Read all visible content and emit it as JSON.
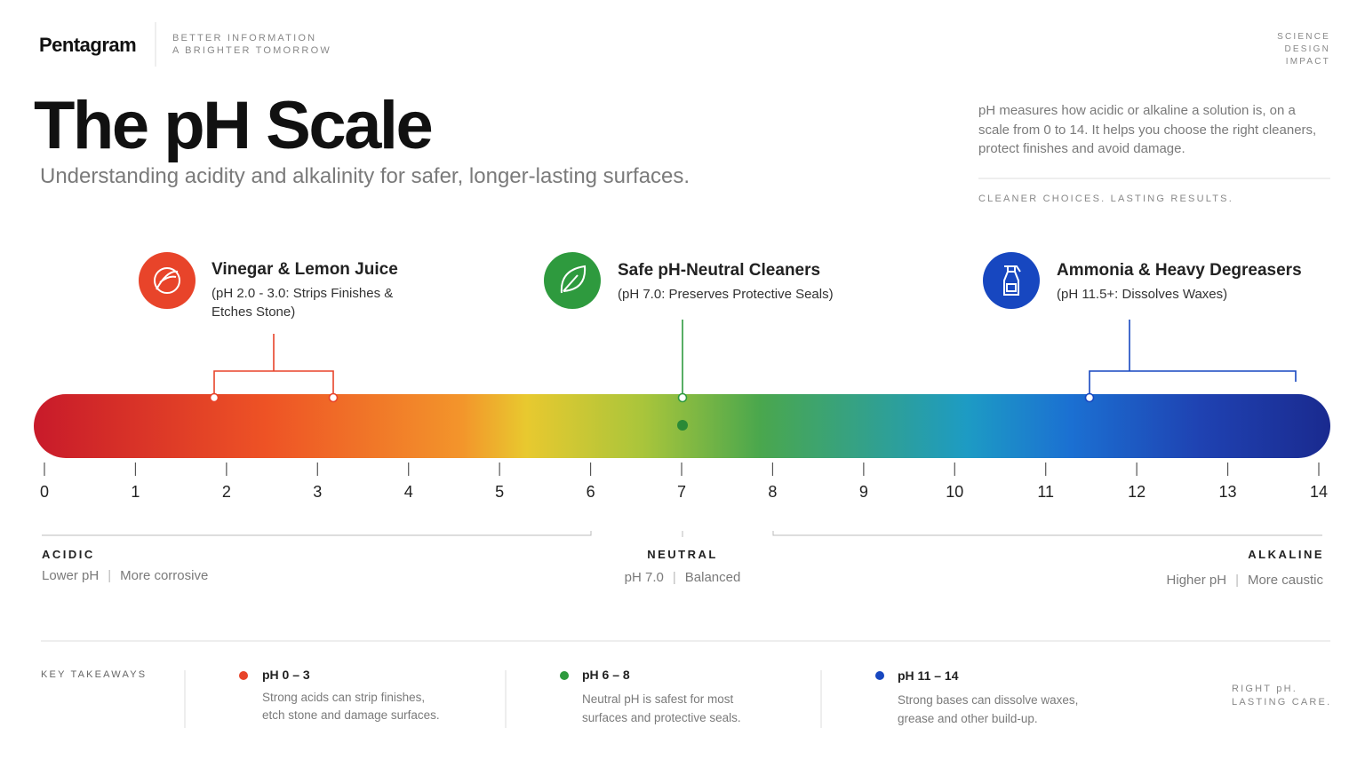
{
  "header": {
    "brand": "Pentagram",
    "tagline": [
      "BETTER INFORMATION",
      "A BRIGHTER TOMORROW"
    ],
    "corner": [
      "SCIENCE",
      "DESIGN",
      "IMPACT"
    ]
  },
  "title": "The pH Scale",
  "subtitle": "Understanding acidity and alkalinity for safer, longer-lasting surfaces.",
  "intro": {
    "text": "pH measures how acidic or alkaline a solution is, on a scale from 0 to 14. It helps you choose the right cleaners, protect finishes and avoid damage.",
    "tagline": "CLEANER CHOICES. LASTING RESULTS."
  },
  "callouts": [
    {
      "title": "Vinegar & Lemon Juice",
      "detail": "(pH 2.0 - 3.0: Strips Finishes & Etches Stone)"
    },
    {
      "title": "Safe pH-Neutral Cleaners",
      "detail": "(pH 7.0: Preserves Protective Seals)"
    },
    {
      "title": "Ammonia & Heavy Degreasers",
      "detail": "(pH 11.5+: Dissolves Waxes)"
    }
  ],
  "scale": {
    "ticks": [
      0,
      1,
      2,
      3,
      4,
      5,
      6,
      7,
      8,
      9,
      10,
      11,
      12,
      13,
      14
    ]
  },
  "zones": [
    {
      "label": "ACIDIC",
      "notes": [
        "Lower pH",
        "More corrosive"
      ]
    },
    {
      "label": "NEUTRAL",
      "notes": [
        "pH 7.0",
        "Balanced"
      ]
    },
    {
      "label": "ALKALINE",
      "notes": [
        "Higher pH",
        "More caustic"
      ]
    }
  ],
  "takeaways": {
    "heading": "KEY TAKEAWAYS",
    "items": [
      {
        "range": "pH 0 – 3",
        "lines": [
          "Strong acids can strip finishes,",
          "etch stone and damage surfaces."
        ]
      },
      {
        "range": "pH 6 – 8",
        "lines": [
          "Neutral pH is safest for most",
          "surfaces and protective seals."
        ]
      },
      {
        "range": "pH 11 – 14",
        "lines": [
          "Strong bases can dissolve waxes,",
          "grease and other build-up."
        ]
      }
    ],
    "footer": [
      "RIGHT pH.",
      "LASTING CARE."
    ]
  }
}
